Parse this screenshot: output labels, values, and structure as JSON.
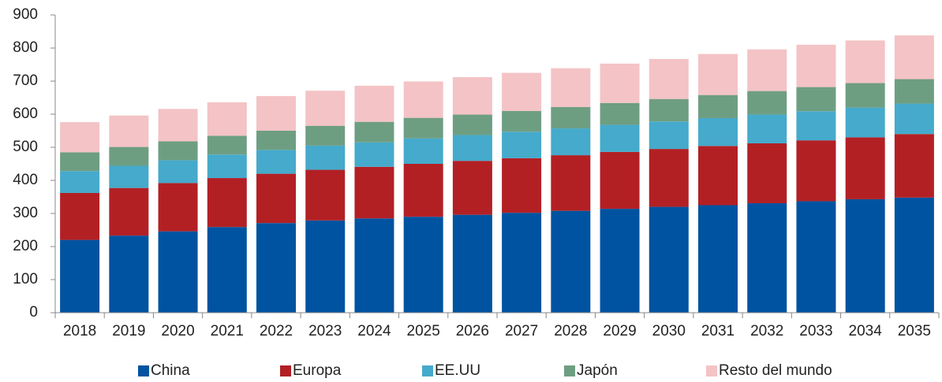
{
  "chart_data": {
    "type": "stacked_bar",
    "categories": [
      "2018",
      "2019",
      "2020",
      "2021",
      "2022",
      "2023",
      "2024",
      "2025",
      "2026",
      "2027",
      "2028",
      "2029",
      "2030",
      "2031",
      "2032",
      "2033",
      "2034",
      "2035"
    ],
    "series": [
      {
        "name": "China",
        "color": "#0053a0",
        "values": [
          220,
          233,
          246,
          259,
          271,
          279,
          285,
          290,
          296,
          302,
          308,
          314,
          320,
          325,
          331,
          337,
          343,
          348
        ]
      },
      {
        "name": "Europa",
        "color": "#b22024",
        "values": [
          142,
          144,
          146,
          148,
          149,
          153,
          156,
          160,
          163,
          165,
          168,
          172,
          175,
          179,
          181,
          184,
          187,
          192
        ]
      },
      {
        "name": "EE.UU",
        "color": "#45aacb",
        "values": [
          66,
          67,
          69,
          71,
          72,
          73,
          74,
          77,
          78,
          80,
          81,
          82,
          83,
          84,
          87,
          88,
          90,
          92
        ]
      },
      {
        "name": "Japón",
        "color": "#6e9e82",
        "values": [
          57,
          57,
          57,
          57,
          58,
          60,
          62,
          62,
          62,
          63,
          65,
          66,
          68,
          70,
          71,
          73,
          74,
          74
        ]
      },
      {
        "name": "Resto del mundo",
        "color": "#f4c3c5",
        "values": [
          91,
          95,
          98,
          101,
          105,
          106,
          109,
          110,
          113,
          115,
          117,
          119,
          121,
          124,
          126,
          128,
          129,
          132
        ]
      }
    ],
    "ylim": [
      0,
      900
    ],
    "yticks": [
      0,
      100,
      200,
      300,
      400,
      500,
      600,
      700,
      800,
      900
    ],
    "grid": false
  }
}
